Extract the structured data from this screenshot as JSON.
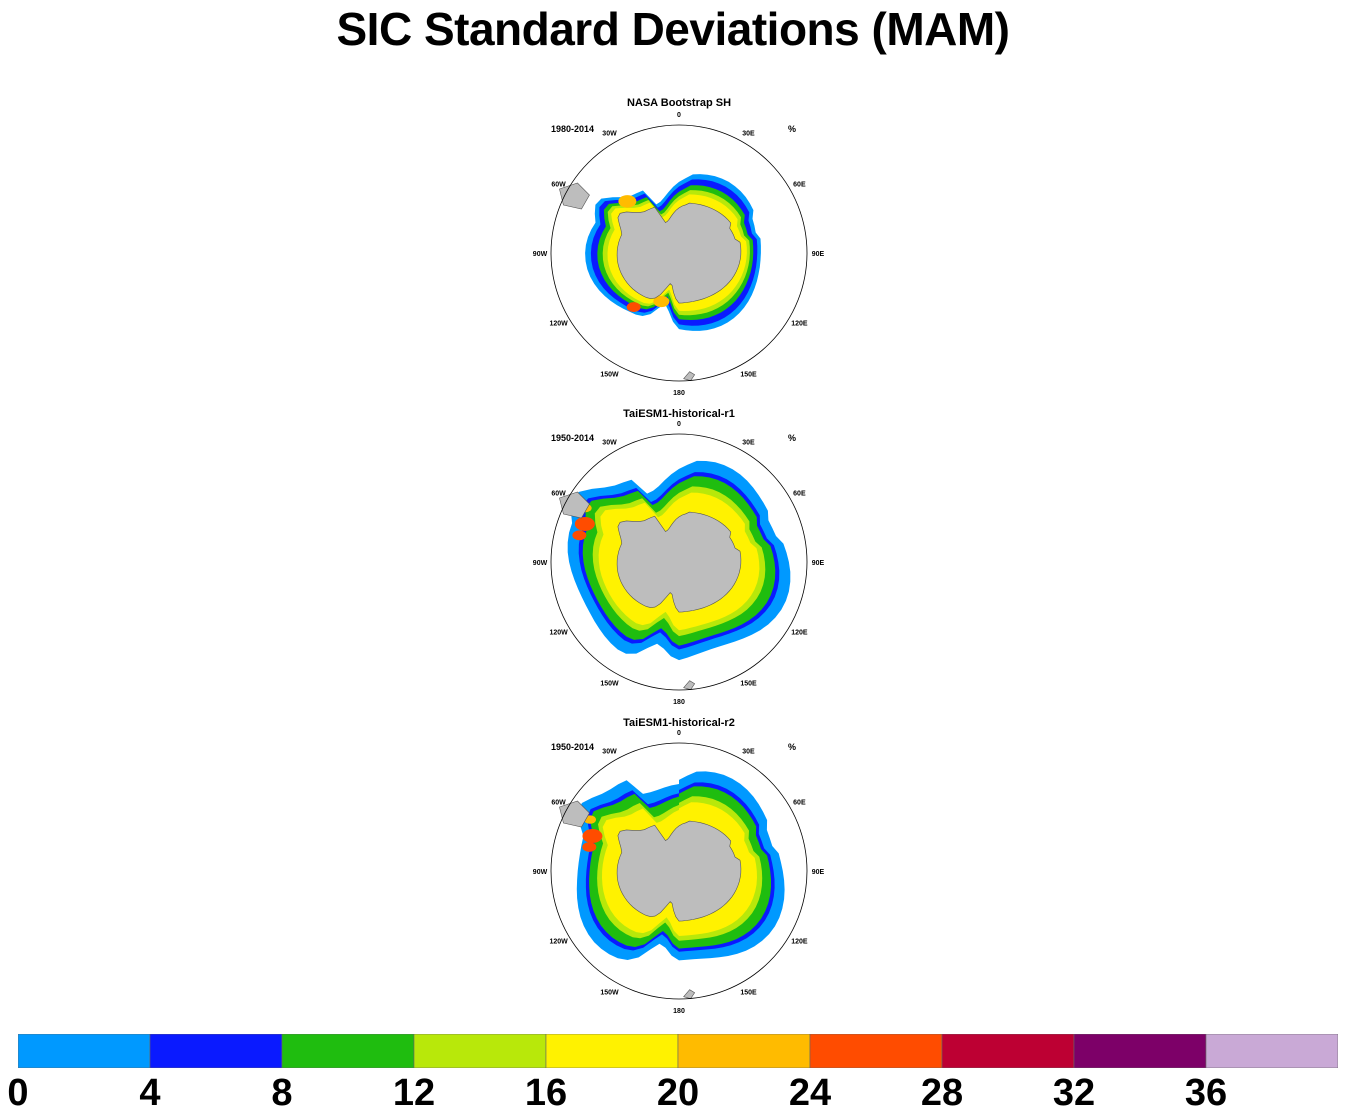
{
  "title": "SIC Standard Deviations (MAM)",
  "units_label": "%",
  "longitude_labels": [
    "0",
    "30E",
    "60E",
    "90E",
    "120E",
    "150E",
    "180",
    "150W",
    "120W",
    "90W",
    "60W",
    "30W"
  ],
  "panels": [
    {
      "title": "NASA Bootstrap SH",
      "period": "1980-2014"
    },
    {
      "title": "TaiESM1-historical-r1",
      "period": "1950-2014"
    },
    {
      "title": "TaiESM1-historical-r2",
      "period": "1950-2014"
    }
  ],
  "colorbar": {
    "ticks": [
      "0",
      "4",
      "8",
      "12",
      "16",
      "20",
      "24",
      "28",
      "32",
      "36"
    ],
    "colors": [
      "#0099ff",
      "#0a1aff",
      "#1fbd0f",
      "#b8e80a",
      "#fff200",
      "#ffbb00",
      "#ff4c00",
      "#bd0033",
      "#7d0068",
      "#c9a9d6"
    ]
  },
  "colors": {
    "land": "#bdbdbd",
    "ocean": "#ffffff",
    "coast": "#555555"
  }
}
